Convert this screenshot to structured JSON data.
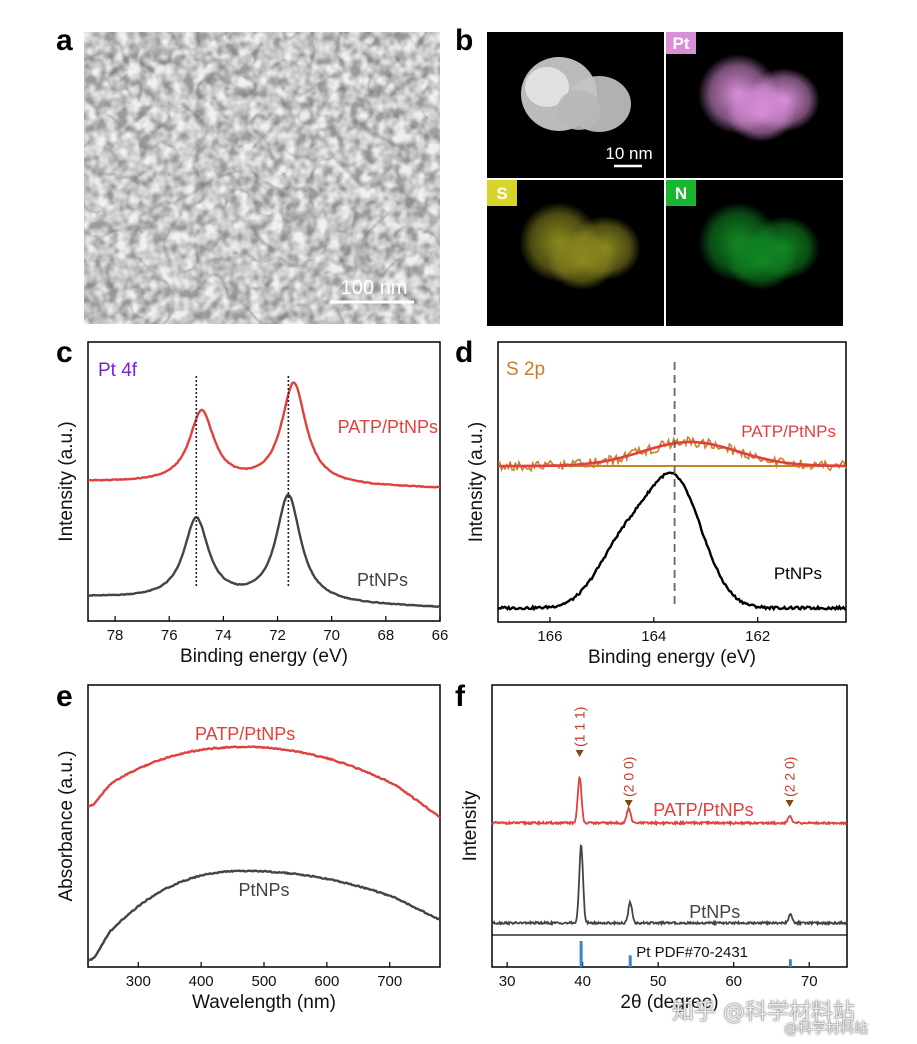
{
  "panels": {
    "a": {
      "label": "a",
      "scale_bar": "100 nm"
    },
    "b": {
      "label": "b",
      "scale_bar": "10 nm",
      "maps": [
        "Pt",
        "S",
        "N"
      ],
      "map_colors": {
        "Pt": "#d98ed8",
        "S": "#d7d52a",
        "N": "#17b530"
      }
    },
    "c": {
      "label": "c",
      "title": "Pt 4f"
    },
    "d": {
      "label": "d",
      "title": "S 2p"
    },
    "e": {
      "label": "e"
    },
    "f": {
      "label": "f"
    }
  },
  "colors": {
    "red": "#e0413f",
    "dark": "#444444",
    "black": "#000000",
    "orange": "#c7822a",
    "title_c": "#7a1fd6",
    "title_d": "#d07a2a",
    "ref": "#3a86c8"
  },
  "watermark": {
    "line1": "知乎 @科学材料站",
    "line2": "@科学材料站"
  },
  "chart_data": [
    {
      "id": "c",
      "type": "line",
      "title": "Pt 4f",
      "xlabel": "Binding energy (eV)",
      "ylabel": "Intensity (a.u.)",
      "xlim": [
        79,
        66
      ],
      "xticks": [
        78,
        76,
        74,
        72,
        70,
        68,
        66
      ],
      "reference_lines": [
        75.0,
        71.6
      ],
      "series": [
        {
          "name": "PATP/PtNPs",
          "color": "#e0413f",
          "offset": 0.62,
          "baseline_left": 0.0,
          "baseline_right": -0.05,
          "peaks": [
            {
              "c": 74.8,
              "h": 0.55,
              "w": 0.55
            },
            {
              "c": 71.4,
              "h": 0.78,
              "w": 0.55
            }
          ]
        },
        {
          "name": "PtNPs",
          "color": "#444444",
          "offset": 0.0,
          "baseline_left": 0.05,
          "baseline_right": -0.03,
          "peaks": [
            {
              "c": 75.0,
              "h": 0.62,
              "w": 0.55
            },
            {
              "c": 71.6,
              "h": 0.82,
              "w": 0.55
            }
          ]
        }
      ]
    },
    {
      "id": "d",
      "type": "line",
      "title": "S 2p",
      "xlabel": "Binding energy (eV)",
      "ylabel": "Intensity (a.u.)",
      "xlim": [
        167,
        160.3
      ],
      "xticks": [
        166,
        164,
        162
      ],
      "reference_lines": [
        163.6
      ],
      "series": [
        {
          "name": "PATP/PtNPs",
          "color": "#e0413f",
          "offset": 0.88,
          "peaks": [
            {
              "c": 163.3,
              "h": 0.16,
              "w": 1.3
            }
          ]
        },
        {
          "name": "PtNPs",
          "color": "#000000",
          "offset": 0.0,
          "peaks": [
            {
              "c": 163.6,
              "h": 0.95,
              "w": 0.75
            },
            {
              "c": 164.6,
              "h": 0.45,
              "w": 0.7
            }
          ]
        }
      ]
    },
    {
      "id": "e",
      "type": "line",
      "xlabel": "Wavelength (nm)",
      "ylabel": "Absorbance (a.u.)",
      "xlim": [
        220,
        780
      ],
      "xticks": [
        300,
        400,
        500,
        600,
        700
      ],
      "series": [
        {
          "name": "PATP/PtNPs",
          "color": "#e0413f"
        },
        {
          "name": "PtNPs",
          "color": "#444444"
        }
      ]
    },
    {
      "id": "f",
      "type": "line",
      "xlabel": "2θ (degree)",
      "ylabel": "Intensity",
      "xlim": [
        28,
        75
      ],
      "xticks": [
        30,
        40,
        50,
        60,
        70
      ],
      "peak_labels": [
        {
          "x": 39.6,
          "label": "(1 1 1)"
        },
        {
          "x": 46.1,
          "label": "(2 0 0)"
        },
        {
          "x": 67.4,
          "label": "(2 2 0)"
        }
      ],
      "reference": {
        "label": "Pt PDF#70-2431",
        "lines": [
          {
            "x": 39.8,
            "h": 1.0
          },
          {
            "x": 46.3,
            "h": 0.45
          },
          {
            "x": 67.5,
            "h": 0.3
          }
        ]
      },
      "series": [
        {
          "name": "PATP/PtNPs",
          "color": "#e0413f",
          "peaks": [
            {
              "c": 39.6,
              "h": 0.55
            },
            {
              "c": 46.1,
              "h": 0.18
            },
            {
              "c": 67.4,
              "h": 0.08
            }
          ]
        },
        {
          "name": "PtNPs",
          "color": "#444444",
          "peaks": [
            {
              "c": 39.8,
              "h": 0.95
            },
            {
              "c": 46.3,
              "h": 0.25
            },
            {
              "c": 67.5,
              "h": 0.1
            }
          ]
        }
      ]
    }
  ]
}
